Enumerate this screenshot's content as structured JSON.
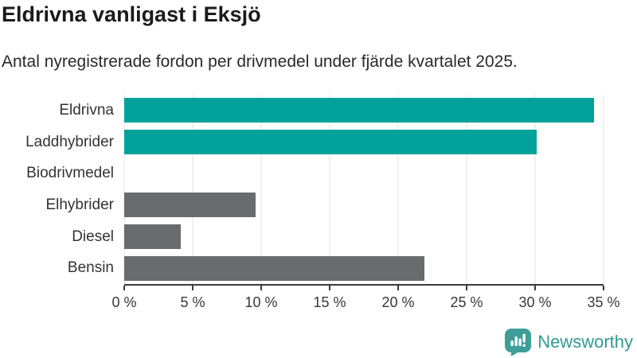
{
  "header": {
    "title": "Eldrivna vanligast i Eksjö",
    "subtitle": "Antal nyregistrerade fordon per drivmedel under fjärde kvartalet 2025."
  },
  "chart_data": {
    "type": "bar",
    "orientation": "horizontal",
    "title": "Eldrivna vanligast i Eksjö",
    "subtitle": "Antal nyregistrerade fordon per drivmedel under fjärde kvartalet 2025.",
    "categories": [
      "Eldrivna",
      "Laddhybrider",
      "Biodrivmedel",
      "Elhybrider",
      "Diesel",
      "Bensin"
    ],
    "values": [
      34.3,
      30.1,
      0,
      9.6,
      4.1,
      21.9
    ],
    "unit": "%",
    "xlabel": "",
    "ylabel": "",
    "xlim": [
      0,
      35
    ],
    "x_ticks": [
      0,
      5,
      10,
      15,
      20,
      25,
      30,
      35
    ],
    "x_tick_labels": [
      "0 %",
      "5 %",
      "10 %",
      "15 %",
      "20 %",
      "25 %",
      "30 %",
      "35 %"
    ],
    "grid": "vertical-gridlines-on",
    "legend": "none",
    "bar_colors": [
      "accent",
      "accent",
      "muted",
      "muted",
      "muted",
      "muted"
    ],
    "colors": {
      "accent": "#00a29a",
      "muted": "#6a6b6f"
    }
  },
  "footer": {
    "brand": "Newsworthy"
  }
}
